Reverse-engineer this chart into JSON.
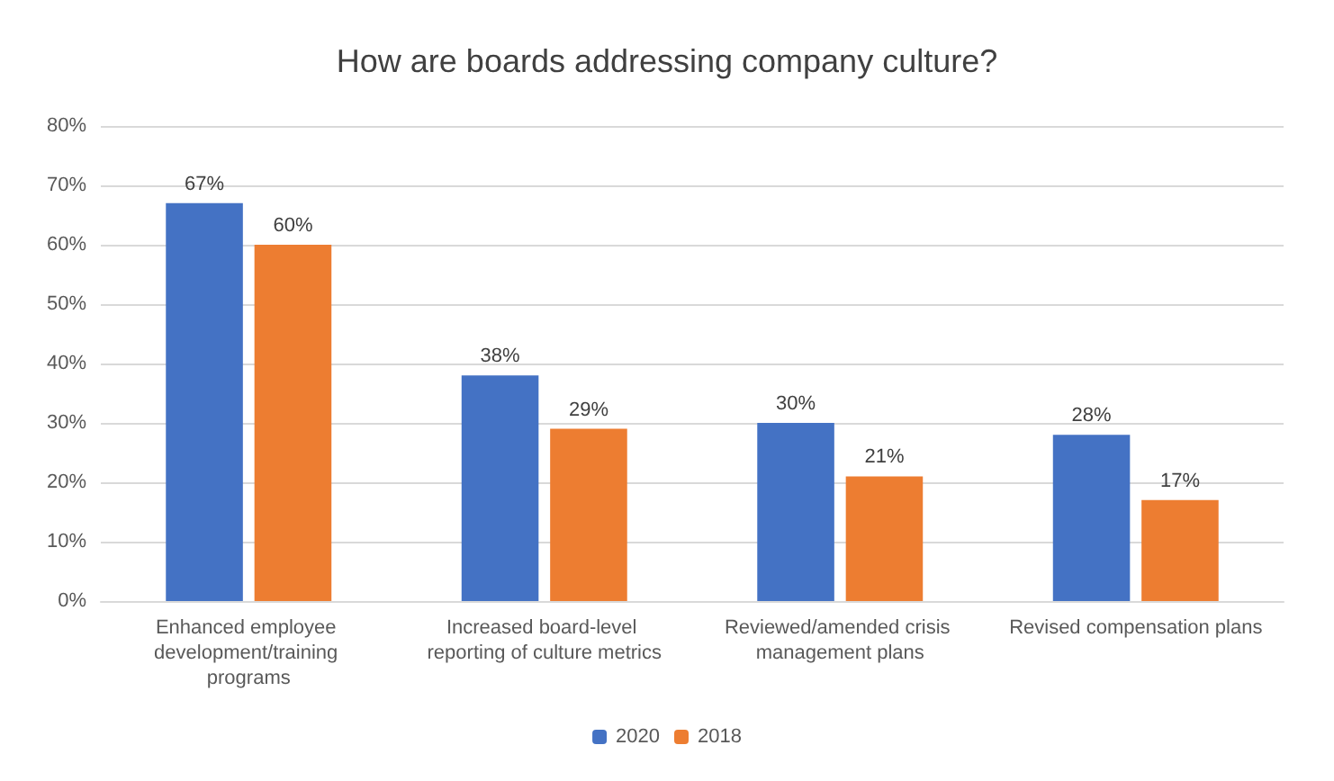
{
  "chart_data": {
    "type": "bar",
    "title": "How are boards addressing company culture?",
    "categories": [
      "Enhanced employee development/training programs",
      "Increased board-level reporting of culture metrics",
      "Reviewed/amended crisis management plans",
      "Revised compensation plans"
    ],
    "series": [
      {
        "name": "2020",
        "color": "#4472c4",
        "values": [
          67,
          38,
          30,
          28
        ],
        "value_labels": [
          "67%",
          "38%",
          "30%",
          "28%"
        ]
      },
      {
        "name": "2018",
        "color": "#ed7d31",
        "values": [
          60,
          29,
          21,
          17
        ],
        "value_labels": [
          "60%",
          "29%",
          "21%",
          "17%"
        ]
      }
    ],
    "ylim": [
      0,
      80
    ],
    "yticks": [
      {
        "value": 0,
        "label": "0%"
      },
      {
        "value": 10,
        "label": "10%"
      },
      {
        "value": 20,
        "label": "20%"
      },
      {
        "value": 30,
        "label": "30%"
      },
      {
        "value": 40,
        "label": "40%"
      },
      {
        "value": 50,
        "label": "50%"
      },
      {
        "value": 60,
        "label": "60%"
      },
      {
        "value": 70,
        "label": "70%"
      },
      {
        "value": 80,
        "label": "80%"
      }
    ],
    "grid": "y",
    "legend": "bottom"
  }
}
